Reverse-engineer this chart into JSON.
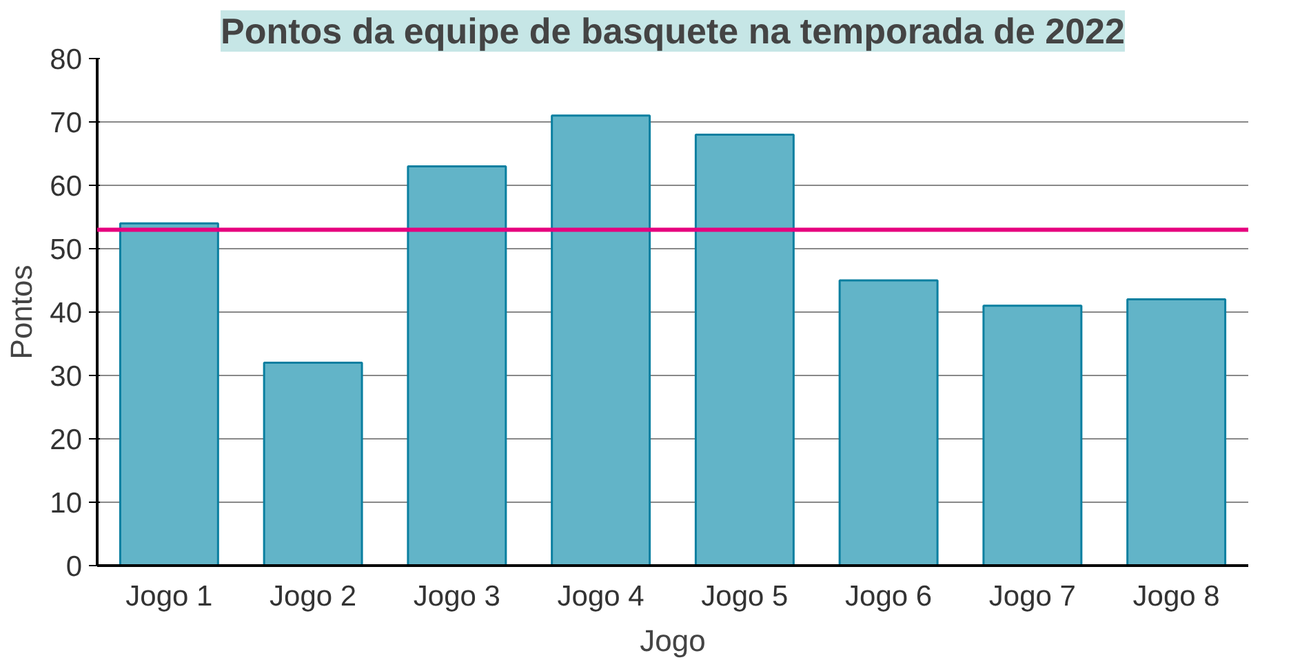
{
  "chart_data": {
    "type": "bar",
    "title": "Pontos da equipe de basquete na temporada de 2022",
    "xlabel": "Jogo",
    "ylabel": "Pontos",
    "categories": [
      "Jogo 1",
      "Jogo 2",
      "Jogo 3",
      "Jogo 4",
      "Jogo 5",
      "Jogo 6",
      "Jogo 7",
      "Jogo 8"
    ],
    "values": [
      54,
      32,
      63,
      71,
      68,
      45,
      41,
      42
    ],
    "color": "#62b4c8",
    "ylim": [
      0,
      80
    ],
    "yticks": [
      0,
      10,
      20,
      30,
      40,
      50,
      60,
      70,
      80
    ],
    "grid": "y",
    "ref_lines": [
      {
        "axis": "y",
        "value": 53,
        "color": "#e6007e"
      }
    ]
  }
}
